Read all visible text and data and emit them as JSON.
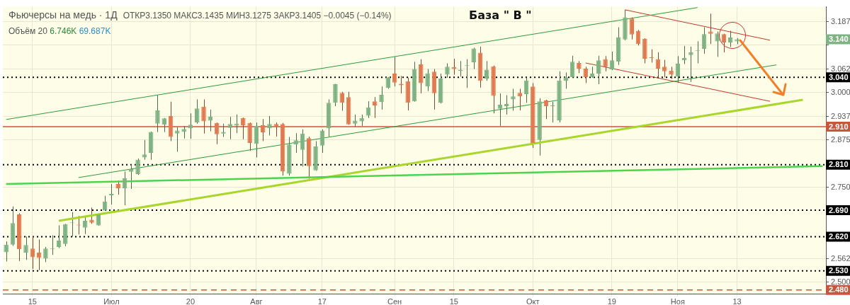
{
  "chart_data": {
    "type": "candlestick",
    "categories": [
      null,
      null,
      null,
      null,
      "15",
      null,
      null,
      null,
      null,
      null,
      null,
      null,
      null,
      null,
      null,
      null,
      "Июл",
      null,
      null,
      null,
      null,
      null,
      null,
      null,
      null,
      null,
      null,
      null,
      "20",
      null,
      null,
      null,
      null,
      null,
      null,
      null,
      null,
      null,
      "Авг",
      null,
      null,
      null,
      null,
      null,
      null,
      null,
      null,
      null,
      "17",
      null,
      null,
      null,
      null,
      null,
      null,
      null,
      null,
      null,
      null,
      "Сен",
      null,
      null,
      null,
      null,
      null,
      null,
      null,
      null,
      "15",
      null,
      null,
      null,
      null,
      null,
      null,
      null,
      null,
      null,
      null,
      null,
      "Окт",
      null,
      null,
      null,
      null,
      null,
      null,
      null,
      null,
      null,
      null,
      null,
      "19",
      null,
      null,
      null,
      null,
      null,
      null,
      null,
      null,
      null,
      "Ноя",
      null,
      null,
      null,
      null,
      null,
      null,
      null,
      null,
      "13",
      null,
      null,
      null,
      null,
      null,
      null,
      null,
      null,
      null,
      null,
      null,
      null,
      null
    ],
    "ohlc": [
      [
        2.579,
        2.608,
        2.555,
        2.599
      ],
      [
        2.599,
        2.7,
        2.596,
        2.656
      ],
      [
        2.679,
        2.682,
        2.556,
        2.587
      ],
      [
        2.578,
        2.621,
        2.559,
        2.598
      ],
      [
        2.589,
        2.621,
        2.535,
        2.566
      ],
      [
        2.578,
        2.613,
        2.532,
        2.564
      ],
      [
        2.563,
        2.593,
        2.553,
        2.589
      ],
      [
        2.587,
        2.624,
        2.572,
        2.589
      ],
      [
        2.593,
        2.65,
        2.59,
        2.61
      ],
      [
        2.601,
        2.654,
        2.595,
        2.653
      ],
      [
        2.656,
        2.685,
        2.621,
        2.657
      ],
      [
        2.652,
        2.675,
        2.626,
        2.65
      ],
      [
        2.644,
        2.675,
        2.627,
        2.662
      ],
      [
        2.665,
        2.697,
        2.654,
        2.657
      ],
      [
        2.65,
        2.68,
        2.649,
        2.679
      ],
      [
        2.689,
        2.728,
        2.688,
        2.713
      ],
      [
        2.729,
        2.759,
        2.705,
        2.733
      ],
      [
        2.759,
        2.768,
        2.731,
        2.748
      ],
      [
        2.748,
        2.792,
        2.703,
        2.774
      ],
      [
        2.791,
        2.811,
        2.746,
        2.798
      ],
      [
        2.785,
        2.826,
        2.783,
        2.823
      ],
      [
        2.829,
        2.875,
        2.823,
        2.837
      ],
      [
        2.841,
        2.897,
        2.823,
        2.896
      ],
      [
        2.918,
        2.993,
        2.896,
        2.953
      ],
      [
        2.915,
        2.933,
        2.896,
        2.932
      ],
      [
        2.938,
        2.976,
        2.872,
        2.883
      ],
      [
        2.892,
        2.909,
        2.844,
        2.9
      ],
      [
        2.896,
        2.912,
        2.879,
        2.904
      ],
      [
        2.906,
        2.945,
        2.878,
        2.915
      ],
      [
        2.921,
        2.982,
        2.918,
        2.958
      ],
      [
        2.963,
        2.982,
        2.892,
        2.924
      ],
      [
        2.926,
        2.955,
        2.898,
        2.936
      ],
      [
        2.92,
        2.921,
        2.864,
        2.89
      ],
      [
        2.892,
        2.918,
        2.883,
        2.896
      ],
      [
        2.907,
        2.936,
        2.877,
        2.917
      ],
      [
        2.913,
        2.942,
        2.893,
        2.918
      ],
      [
        2.933,
        2.934,
        2.877,
        2.914
      ],
      [
        2.92,
        2.921,
        2.846,
        2.867
      ],
      [
        2.865,
        2.921,
        2.829,
        2.912
      ],
      [
        2.914,
        2.93,
        2.872,
        2.895
      ],
      [
        2.906,
        2.938,
        2.887,
        2.917
      ],
      [
        2.917,
        2.921,
        2.884,
        2.91
      ],
      [
        2.917,
        2.92,
        2.781,
        2.792
      ],
      [
        2.786,
        2.883,
        2.781,
        2.863
      ],
      [
        2.863,
        2.893,
        2.841,
        2.874
      ],
      [
        2.849,
        2.903,
        2.805,
        2.892
      ],
      [
        2.88,
        2.884,
        2.773,
        2.806
      ],
      [
        2.795,
        2.872,
        2.794,
        2.858
      ],
      [
        2.86,
        2.903,
        2.841,
        2.9
      ],
      [
        2.906,
        2.982,
        2.884,
        2.973
      ],
      [
        2.973,
        3.023,
        2.964,
        3.022
      ],
      [
        2.999,
        3.002,
        2.952,
        2.973
      ],
      [
        2.988,
        3.002,
        2.915,
        2.916
      ],
      [
        2.918,
        2.942,
        2.91,
        2.926
      ],
      [
        2.924,
        2.942,
        2.912,
        2.933
      ],
      [
        2.939,
        2.977,
        2.933,
        2.961
      ],
      [
        2.977,
        2.988,
        2.933,
        2.966
      ],
      [
        2.975,
        3.016,
        2.955,
        2.994
      ],
      [
        3.012,
        3.041,
        3.01,
        3.04
      ],
      [
        3.05,
        3.094,
        3.016,
        3.026
      ],
      [
        3.023,
        3.044,
        2.998,
        3.019
      ],
      [
        3.03,
        3.039,
        2.953,
        2.973
      ],
      [
        2.977,
        3.081,
        2.976,
        3.062
      ],
      [
        3.074,
        3.088,
        2.998,
        3.025
      ],
      [
        3.016,
        3.062,
        3.004,
        3.051
      ],
      [
        3.055,
        3.062,
        2.955,
        2.998
      ],
      [
        2.973,
        3.05,
        2.971,
        3.037
      ],
      [
        3.047,
        3.077,
        3.039,
        3.068
      ],
      [
        3.067,
        3.089,
        3.047,
        3.062
      ],
      [
        3.057,
        3.083,
        3.042,
        3.06
      ],
      [
        3.07,
        3.088,
        3.012,
        3.071
      ],
      [
        3.08,
        3.118,
        3.062,
        3.116
      ],
      [
        3.105,
        3.121,
        3.013,
        3.031
      ],
      [
        3.036,
        3.083,
        3.031,
        3.06
      ],
      [
        3.069,
        3.071,
        2.945,
        2.991
      ],
      [
        2.957,
        2.998,
        2.912,
        2.968
      ],
      [
        2.964,
        2.993,
        2.942,
        2.97
      ],
      [
        2.982,
        3.01,
        2.952,
        2.99
      ],
      [
        2.999,
        3.01,
        2.953,
        2.99
      ],
      [
        2.996,
        3.04,
        2.973,
        3.032
      ],
      [
        3.016,
        3.025,
        2.854,
        2.867
      ],
      [
        2.875,
        2.985,
        2.834,
        2.977
      ],
      [
        2.979,
        2.981,
        2.93,
        2.964
      ],
      [
        2.964,
        2.976,
        2.921,
        2.965
      ],
      [
        2.927,
        3.056,
        2.921,
        3.032
      ],
      [
        3.031,
        3.053,
        3.01,
        3.04
      ],
      [
        3.04,
        3.097,
        3.039,
        3.081
      ],
      [
        3.078,
        3.083,
        3.051,
        3.063
      ],
      [
        3.063,
        3.068,
        3.025,
        3.04
      ],
      [
        3.04,
        3.068,
        3.039,
        3.05
      ],
      [
        3.05,
        3.097,
        3.022,
        3.085
      ],
      [
        3.088,
        3.096,
        3.056,
        3.068
      ],
      [
        3.061,
        3.108,
        3.059,
        3.085
      ],
      [
        3.081,
        3.172,
        3.073,
        3.146
      ],
      [
        3.14,
        3.218,
        3.138,
        3.198
      ],
      [
        3.195,
        3.198,
        3.14,
        3.153
      ],
      [
        3.163,
        3.165,
        3.124,
        3.128
      ],
      [
        3.142,
        3.143,
        3.077,
        3.089
      ],
      [
        3.093,
        3.114,
        3.079,
        3.091
      ],
      [
        3.088,
        3.106,
        3.04,
        3.063
      ],
      [
        3.068,
        3.086,
        3.04,
        3.056
      ],
      [
        3.058,
        3.068,
        3.036,
        3.047
      ],
      [
        3.042,
        3.096,
        3.026,
        3.076
      ],
      [
        3.085,
        3.123,
        3.075,
        3.091
      ],
      [
        3.099,
        3.121,
        3.028,
        3.106
      ],
      [
        3.109,
        3.135,
        3.077,
        3.11
      ],
      [
        3.115,
        3.172,
        3.102,
        3.154
      ],
      [
        3.161,
        3.208,
        3.128,
        3.155
      ],
      [
        3.135,
        3.161,
        3.094,
        3.156
      ],
      [
        3.154,
        3.155,
        3.106,
        3.132
      ],
      [
        3.132,
        3.163,
        3.12,
        3.145
      ],
      [
        3.135,
        3.1435,
        3.1275,
        3.1405
      ],
      null,
      null,
      null,
      null,
      null,
      null,
      null,
      null,
      null,
      null,
      null,
      null,
      null
    ],
    "colors": [
      "#7fb383",
      "#7fb383",
      "#e07a50",
      "#7fb383",
      "#e07a50",
      "#e07a50",
      "#7fb383",
      "#7fb383",
      "#7fb383",
      "#7fb383",
      "#7fb383",
      "#e07a50",
      "#7fb383",
      "#e07a50",
      "#7fb383",
      "#7fb383",
      "#7fb383",
      "#e07a50",
      "#7fb383",
      "#7fb383",
      "#7fb383",
      "#7fb383",
      "#7fb383",
      "#7fb383",
      "#7fb383",
      "#e07a50",
      "#7fb383",
      "#7fb383",
      "#7fb383",
      "#7fb383",
      "#e07a50",
      "#7fb383",
      "#e07a50",
      "#7fb383",
      "#7fb383",
      "#7fb383",
      "#e07a50",
      "#e07a50",
      "#7fb383",
      "#e07a50",
      "#7fb383",
      "#e07a50",
      "#e07a50",
      "#7fb383",
      "#7fb383",
      "#7fb383",
      "#e07a50",
      "#7fb383",
      "#7fb383",
      "#7fb383",
      "#7fb383",
      "#e07a50",
      "#e07a50",
      "#7fb383",
      "#7fb383",
      "#7fb383",
      "#e07a50",
      "#7fb383",
      "#7fb383",
      "#e07a50",
      "#e07a50",
      "#e07a50",
      "#7fb383",
      "#e07a50",
      "#7fb383",
      "#e07a50",
      "#7fb383",
      "#7fb383",
      "#e07a50",
      "#7fb383",
      "#7fb383",
      "#7fb383",
      "#e07a50",
      "#7fb383",
      "#e07a50",
      "#7fb383",
      "#7fb383",
      "#7fb383",
      "#e07a50",
      "#7fb383",
      "#e07a50",
      "#7fb383",
      "#e07a50",
      "#7fb383",
      "#7fb383",
      "#7fb383",
      "#7fb383",
      "#e07a50",
      "#e07a50",
      "#7fb383",
      "#7fb383",
      "#e07a50",
      "#7fb383",
      "#7fb383",
      "#7fb383",
      "#e07a50",
      "#e07a50",
      "#e07a50",
      "#e07a50",
      "#e07a50",
      "#e07a50",
      "#e07a50",
      "#7fb383",
      "#7fb383",
      "#7fb383",
      "#7fb383",
      "#7fb383",
      "#e07a50",
      "#7fb383",
      "#e07a50",
      "#7fb383",
      "#7fb383",
      null,
      null,
      null,
      null,
      null,
      null,
      null,
      null,
      null,
      null,
      null,
      null,
      null
    ],
    "series": [
      {
        "type": "line",
        "color": "#4cd44c",
        "values": [
          2.759,
          null,
          null,
          null,
          null,
          null,
          null,
          null,
          null,
          null,
          null,
          null,
          null,
          null,
          null,
          null,
          null,
          null,
          null,
          null,
          null,
          null,
          null,
          null,
          null,
          null,
          null,
          null,
          null,
          null,
          null,
          null,
          null,
          null,
          null,
          null,
          null,
          null,
          null,
          null,
          null,
          null,
          null,
          null,
          null,
          null,
          null,
          null,
          null,
          null,
          null,
          null,
          null,
          null,
          null,
          null,
          null,
          null,
          null,
          null,
          null,
          null,
          null,
          null,
          null,
          null,
          null,
          null,
          null,
          null,
          null,
          null,
          null,
          null,
          null,
          null,
          null,
          null,
          null,
          null,
          null,
          null,
          null,
          null,
          null,
          null,
          null,
          null,
          null,
          null,
          null,
          null,
          null,
          null,
          null,
          null,
          null,
          null,
          null,
          null,
          null,
          null,
          null,
          null,
          null,
          null,
          null,
          null,
          null,
          null,
          null,
          null,
          null,
          null,
          null,
          null,
          null,
          null,
          null,
          null,
          null,
          null,
          null,
          null,
          2.806
        ]
      },
      {
        "type": "line",
        "color": "#a8d62a",
        "values": [
          null,
          null,
          null,
          null,
          null,
          null,
          null,
          null,
          2.662,
          null,
          null,
          null,
          null,
          null,
          null,
          null,
          null,
          null,
          null,
          null,
          null,
          null,
          null,
          null,
          null,
          null,
          null,
          null,
          null,
          null,
          null,
          null,
          null,
          null,
          null,
          null,
          null,
          null,
          null,
          null,
          null,
          null,
          null,
          null,
          null,
          null,
          null,
          null,
          null,
          null,
          null,
          null,
          null,
          null,
          null,
          null,
          null,
          null,
          null,
          null,
          null,
          null,
          null,
          null,
          null,
          null,
          null,
          null,
          null,
          null,
          null,
          null,
          null,
          null,
          null,
          null,
          null,
          null,
          null,
          null,
          null,
          null,
          null,
          null,
          null,
          null,
          null,
          null,
          null,
          null,
          null,
          null,
          null,
          null,
          null,
          null,
          null,
          null,
          null,
          null,
          null,
          null,
          null,
          null,
          null,
          null,
          null,
          null,
          null,
          null,
          null,
          null,
          null,
          null,
          null,
          null,
          null,
          null,
          null,
          null,
          null,
          2.981,
          null,
          null,
          null
        ]
      },
      {
        "type": "line",
        "color": "#2e9b3c",
        "values": [
          2.929,
          null,
          null,
          null,
          null,
          null,
          null,
          null,
          null,
          null,
          null,
          null,
          null,
          null,
          null,
          null,
          null,
          null,
          null,
          null,
          null,
          null,
          null,
          null,
          null,
          null,
          null,
          null,
          null,
          null,
          null,
          null,
          null,
          null,
          null,
          null,
          null,
          null,
          null,
          null,
          null,
          null,
          null,
          null,
          null,
          null,
          null,
          null,
          null,
          null,
          null,
          null,
          null,
          null,
          null,
          null,
          null,
          null,
          null,
          null,
          null,
          null,
          null,
          null,
          null,
          null,
          null,
          null,
          null,
          null,
          null,
          null,
          null,
          null,
          null,
          null,
          null,
          null,
          null,
          null,
          null,
          null,
          null,
          null,
          null,
          null,
          null,
          null,
          null,
          null,
          null,
          null,
          null,
          null,
          null,
          null,
          null,
          null,
          null,
          null,
          null,
          null,
          null,
          null,
          null,
          3.224,
          null,
          null,
          null,
          null,
          null,
          null,
          null,
          null,
          null,
          null,
          null,
          null,
          null,
          null,
          null,
          null,
          null,
          null,
          null
        ]
      },
      {
        "type": "line",
        "color": "#2e9b3c",
        "values": [
          null,
          null,
          null,
          null,
          null,
          null,
          null,
          null,
          null,
          null,
          null,
          2.776,
          null,
          null,
          null,
          null,
          null,
          null,
          null,
          null,
          null,
          null,
          null,
          null,
          null,
          null,
          null,
          null,
          null,
          null,
          null,
          null,
          null,
          null,
          null,
          null,
          null,
          null,
          null,
          null,
          null,
          null,
          null,
          null,
          null,
          null,
          null,
          null,
          null,
          null,
          null,
          null,
          null,
          null,
          null,
          null,
          null,
          null,
          null,
          null,
          null,
          null,
          null,
          null,
          null,
          null,
          null,
          null,
          null,
          null,
          null,
          null,
          null,
          null,
          null,
          null,
          null,
          null,
          null,
          null,
          null,
          null,
          null,
          null,
          null,
          null,
          null,
          null,
          null,
          null,
          null,
          null,
          null,
          null,
          null,
          null,
          null,
          null,
          null,
          null,
          null,
          null,
          null,
          null,
          null,
          null,
          null,
          null,
          null,
          null,
          null,
          null,
          null,
          null,
          null,
          null,
          null,
          3.073,
          null,
          null,
          null,
          null,
          null,
          null,
          null
        ]
      },
      {
        "type": "line",
        "color": "#c0392b",
        "values": [
          null,
          null,
          null,
          null,
          null,
          null,
          null,
          null,
          null,
          null,
          null,
          null,
          null,
          null,
          null,
          null,
          null,
          null,
          null,
          null,
          null,
          null,
          null,
          null,
          null,
          null,
          null,
          null,
          null,
          null,
          null,
          null,
          null,
          null,
          null,
          null,
          null,
          null,
          null,
          null,
          null,
          null,
          null,
          null,
          null,
          null,
          null,
          null,
          null,
          null,
          null,
          null,
          null,
          null,
          null,
          null,
          null,
          null,
          null,
          null,
          null,
          null,
          null,
          null,
          null,
          null,
          null,
          null,
          null,
          null,
          null,
          null,
          null,
          null,
          null,
          null,
          null,
          null,
          null,
          null,
          null,
          null,
          null,
          null,
          null,
          null,
          null,
          null,
          null,
          null,
          null,
          null,
          null,
          null,
          3.218,
          null,
          null,
          null,
          null,
          null,
          null,
          null,
          null,
          null,
          null,
          null,
          null,
          null,
          null,
          null,
          null,
          null,
          null,
          null,
          null,
          null,
          3.138,
          null,
          null,
          null,
          null,
          null,
          null,
          null,
          null
        ]
      },
      {
        "type": "line",
        "color": "#c0392b",
        "values": [
          null,
          null,
          null,
          null,
          null,
          null,
          null,
          null,
          null,
          null,
          null,
          null,
          null,
          null,
          null,
          null,
          null,
          null,
          null,
          null,
          null,
          null,
          null,
          null,
          null,
          null,
          null,
          null,
          null,
          null,
          null,
          null,
          null,
          null,
          null,
          null,
          null,
          null,
          null,
          null,
          null,
          null,
          null,
          null,
          null,
          null,
          null,
          null,
          null,
          null,
          null,
          null,
          null,
          null,
          null,
          null,
          null,
          null,
          null,
          null,
          null,
          null,
          null,
          null,
          null,
          null,
          null,
          null,
          null,
          null,
          null,
          null,
          null,
          null,
          null,
          null,
          null,
          null,
          null,
          null,
          null,
          null,
          null,
          null,
          null,
          null,
          null,
          null,
          3.078,
          null,
          null,
          null,
          null,
          null,
          null,
          null,
          null,
          null,
          null,
          null,
          null,
          null,
          null,
          null,
          null,
          null,
          null,
          null,
          null,
          null,
          null,
          null,
          null,
          null,
          null,
          null,
          2.977,
          null,
          null,
          null,
          null,
          null,
          null,
          null,
          null
        ]
      }
    ],
    "ylim": [
      2.47,
      3.226
    ],
    "yticks": [
      {
        "value": 2.5,
        "label": "2.500"
      },
      {
        "value": 2.562,
        "label": "2.562"
      },
      {
        "value": 2.75,
        "label": "2.750"
      },
      {
        "value": 2.875,
        "label": "2.875"
      },
      {
        "value": 2.937,
        "label": "2.937"
      },
      {
        "value": 3.0,
        "label": "3.000"
      },
      {
        "value": 3.062,
        "label": "3.062"
      },
      {
        "value": 3.125,
        "label": null
      },
      {
        "value": 3.187,
        "label": "3.187"
      }
    ],
    "grid": true,
    "ref_lines": [
      {
        "axis": "y",
        "value": 3.04,
        "label": "3.040",
        "color": "#000000",
        "line_style": "dotted"
      },
      {
        "axis": "y",
        "value": 2.91,
        "label": "2.910",
        "color": "#c8553d",
        "line_style": "solid"
      },
      {
        "axis": "y",
        "value": 2.81,
        "label": "2.810",
        "color": "#000000",
        "line_style": "dotted"
      },
      {
        "axis": "y",
        "value": 2.69,
        "label": "2.690",
        "color": "#000000",
        "line_style": "dotted"
      },
      {
        "axis": "y",
        "value": 2.62,
        "label": "2.620",
        "color": "#000000",
        "line_style": "dotted"
      },
      {
        "axis": "y",
        "value": 2.53,
        "label": "2.530",
        "color": "#000000",
        "line_style": "dotted"
      },
      {
        "axis": "y",
        "value": 2.48,
        "label": "2.480",
        "color": "#c8553d",
        "line_style": "dashed"
      }
    ],
    "annotations": [
      "Фьючерсы на медь · 1Д",
      "ОТКР3.1350 МАКС3.1435 МИН3.1275 ЗАКР3.1405 −0.0045 (−0.14%)",
      "Объём 20 6.746K 69.687K",
      "База \" В \"",
      {
        "text": "3.140",
        "y": 3.1405
      }
    ]
  }
}
